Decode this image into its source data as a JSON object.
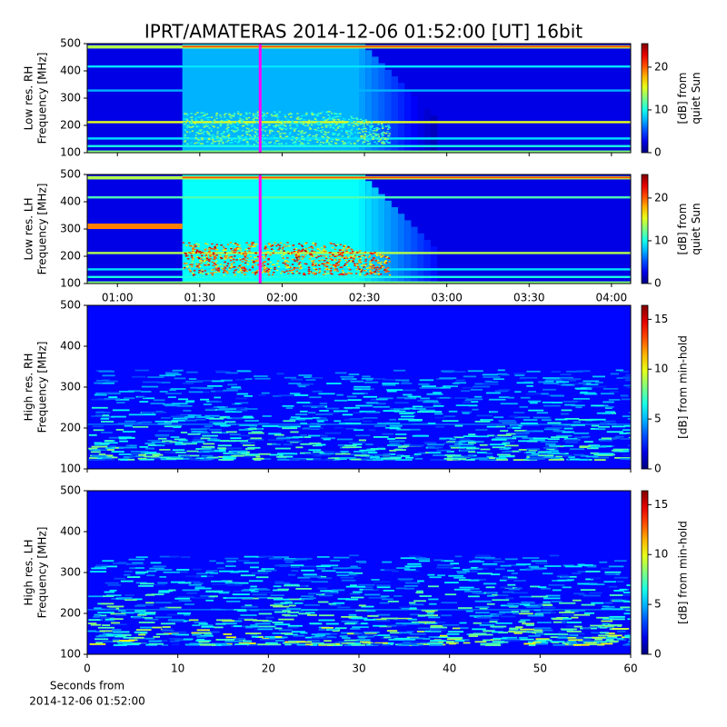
{
  "title": "IPRT/AMATERAS 2014-12-06 01:52:00 [UT]   16bit",
  "chart_data": [
    {
      "type": "spectrogram",
      "ylabel": [
        "Low res. RH",
        "Frequency [MHz]"
      ],
      "xlim": [
        49,
        247
      ],
      "xticks": [
        {
          "value": 60
        },
        {
          "value": 90
        },
        {
          "value": 120
        },
        {
          "value": 150
        },
        {
          "value": 180
        },
        {
          "value": 210
        },
        {
          "value": 240
        }
      ],
      "ylim": [
        100,
        500
      ],
      "yticks": [
        100,
        200,
        300,
        400,
        500
      ],
      "clim": [
        0,
        25.5
      ],
      "cticks": [
        0,
        10,
        20
      ],
      "clabel": [
        "[dB] from",
        "quiet Sun"
      ],
      "colormap": "jet",
      "cursor_x": 112,
      "cursor_color": "#ff00ff"
    },
    {
      "type": "spectrogram",
      "ylabel": [
        "Low res. LH",
        "Frequency [MHz]"
      ],
      "xlim": [
        49,
        247
      ],
      "xticks": [
        {
          "value": 60,
          "label": "01:00"
        },
        {
          "value": 90,
          "label": "01:30"
        },
        {
          "value": 120,
          "label": "02:00"
        },
        {
          "value": 150,
          "label": "02:30"
        },
        {
          "value": 180,
          "label": "03:00"
        },
        {
          "value": 210,
          "label": "03:30"
        },
        {
          "value": 240,
          "label": "04:00"
        }
      ],
      "ylim": [
        100,
        500
      ],
      "yticks": [
        100,
        200,
        300,
        400,
        500
      ],
      "clim": [
        0,
        25.5
      ],
      "cticks": [
        0,
        10,
        20
      ],
      "clabel": [
        "[dB] from",
        "quiet Sun"
      ],
      "colormap": "jet",
      "cursor_x": 112,
      "cursor_color": "#ff00ff"
    },
    {
      "type": "spectrogram",
      "ylabel": [
        "High res. RH",
        "Frequency [MHz]"
      ],
      "xlim": [
        0,
        60
      ],
      "xticks": [
        {
          "value": 0
        },
        {
          "value": 10
        },
        {
          "value": 20
        },
        {
          "value": 30
        },
        {
          "value": 40
        },
        {
          "value": 50
        },
        {
          "value": 60
        }
      ],
      "ylim": [
        100,
        500
      ],
      "yticks": [
        100,
        200,
        300,
        400,
        500
      ],
      "clim": [
        0,
        16.4
      ],
      "cticks": [
        0,
        5,
        10,
        15
      ],
      "clabel": [
        "[dB] from min-hold"
      ],
      "colormap": "jet"
    },
    {
      "type": "spectrogram",
      "ylabel": [
        "High res. LH",
        "Frequency [MHz]"
      ],
      "xlim": [
        0,
        60
      ],
      "xticks": [
        0,
        10,
        20,
        30,
        40,
        50,
        60
      ],
      "ylim": [
        100,
        500
      ],
      "yticks": [
        100,
        200,
        300,
        400,
        500
      ],
      "clim": [
        0,
        16.4
      ],
      "cticks": [
        0,
        5,
        10,
        15
      ],
      "clabel": [
        "[dB] from min-hold"
      ],
      "colormap": "jet",
      "xlabel": [
        "Seconds from",
        "2014-12-06 01:52:00"
      ]
    }
  ]
}
